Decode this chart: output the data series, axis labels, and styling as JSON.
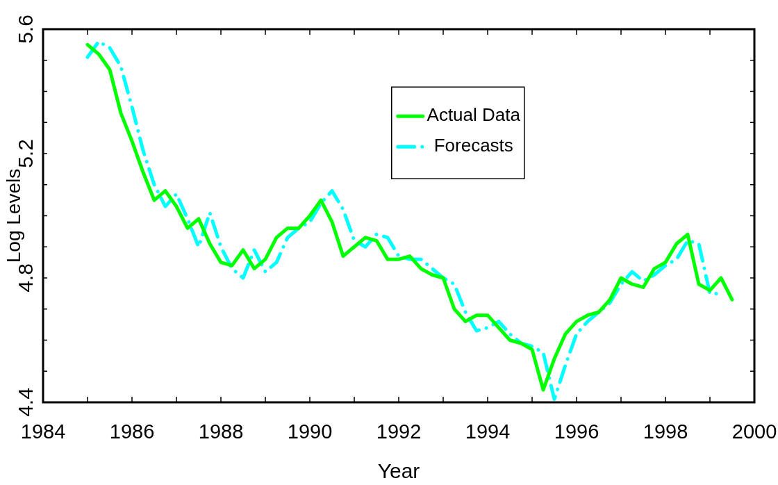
{
  "chart_data": {
    "type": "line",
    "xlabel": "Year",
    "ylabel": "Log Levels",
    "legend": "top right",
    "x": [
      1985,
      1985.25,
      1985.5,
      1985.75,
      1986,
      1986.25,
      1986.5,
      1986.75,
      1987,
      1987.25,
      1987.5,
      1987.75,
      1988,
      1988.25,
      1988.5,
      1988.75,
      1989,
      1989.25,
      1989.5,
      1989.75,
      1990,
      1990.25,
      1990.5,
      1990.75,
      1991,
      1991.25,
      1991.5,
      1991.75,
      1992,
      1992.25,
      1992.5,
      1992.75,
      1993,
      1993.25,
      1993.5,
      1993.75,
      1994,
      1994.25,
      1994.5,
      1994.75,
      1995,
      1995.25,
      1995.5,
      1995.75,
      1996,
      1996.25,
      1996.5,
      1996.75,
      1997,
      1997.25,
      1997.5,
      1997.75,
      1998,
      1998.25,
      1998.5,
      1998.75,
      1999,
      1999.25,
      1999.5
    ],
    "series": [
      {
        "name": "Actual Data",
        "color": "#00ff00",
        "line_style": "solid",
        "values": [
          5.55,
          5.52,
          5.47,
          5.33,
          5.24,
          5.14,
          5.05,
          5.08,
          5.03,
          4.96,
          4.99,
          4.91,
          4.85,
          4.84,
          4.89,
          4.83,
          4.86,
          4.93,
          4.96,
          4.96,
          5.0,
          5.05,
          4.98,
          4.87,
          4.9,
          4.93,
          4.92,
          4.86,
          4.86,
          4.87,
          4.83,
          4.81,
          4.8,
          4.7,
          4.66,
          4.68,
          4.68,
          4.64,
          4.6,
          4.59,
          4.57,
          4.44,
          4.54,
          4.62,
          4.66,
          4.68,
          4.69,
          4.73,
          4.8,
          4.78,
          4.77,
          4.83,
          4.85,
          4.91,
          4.94,
          4.78,
          4.76,
          4.8,
          4.73
        ]
      },
      {
        "name": "Forecasts",
        "color": "#00ffff",
        "line_style": "dashed",
        "values": [
          5.51,
          5.56,
          5.54,
          5.48,
          5.35,
          5.21,
          5.1,
          5.03,
          5.07,
          4.99,
          4.9,
          5.01,
          4.9,
          4.83,
          4.8,
          4.89,
          4.82,
          4.85,
          4.93,
          4.96,
          4.98,
          5.04,
          5.08,
          5.02,
          4.92,
          4.9,
          4.94,
          4.93,
          4.87,
          4.86,
          4.86,
          4.83,
          4.8,
          4.78,
          4.69,
          4.63,
          4.64,
          4.66,
          4.62,
          4.59,
          4.58,
          4.56,
          4.41,
          4.52,
          4.62,
          4.66,
          4.69,
          4.72,
          4.78,
          4.82,
          4.79,
          4.81,
          4.84,
          4.86,
          4.92,
          4.91,
          4.75,
          4.75,
          null
        ]
      }
    ],
    "xlim": [
      1984,
      2000
    ],
    "xticks": [
      1984,
      {
        "value": 1985,
        "label": null
      },
      1986,
      {
        "value": 1987,
        "label": null
      },
      1988,
      {
        "value": 1989,
        "label": null
      },
      1990,
      {
        "value": 1991,
        "label": null
      },
      1992,
      {
        "value": 1993,
        "label": null
      },
      1994,
      {
        "value": 1995,
        "label": null
      },
      1996,
      {
        "value": 1997,
        "label": null
      },
      1998,
      {
        "value": 1999,
        "label": null
      },
      2000
    ],
    "ylim": [
      4.4,
      5.6
    ],
    "yticks": [
      4.4,
      {
        "value": 4.5,
        "label": null
      },
      {
        "value": 4.6,
        "label": null
      },
      {
        "value": 4.7,
        "label": null
      },
      4.8,
      {
        "value": 4.9,
        "label": null
      },
      {
        "value": 5.0,
        "label": null
      },
      {
        "value": 5.1,
        "label": null
      },
      5.2,
      {
        "value": 5.3,
        "label": null
      },
      {
        "value": 5.4,
        "label": null
      },
      {
        "value": 5.5,
        "label": null
      },
      5.6
    ]
  }
}
